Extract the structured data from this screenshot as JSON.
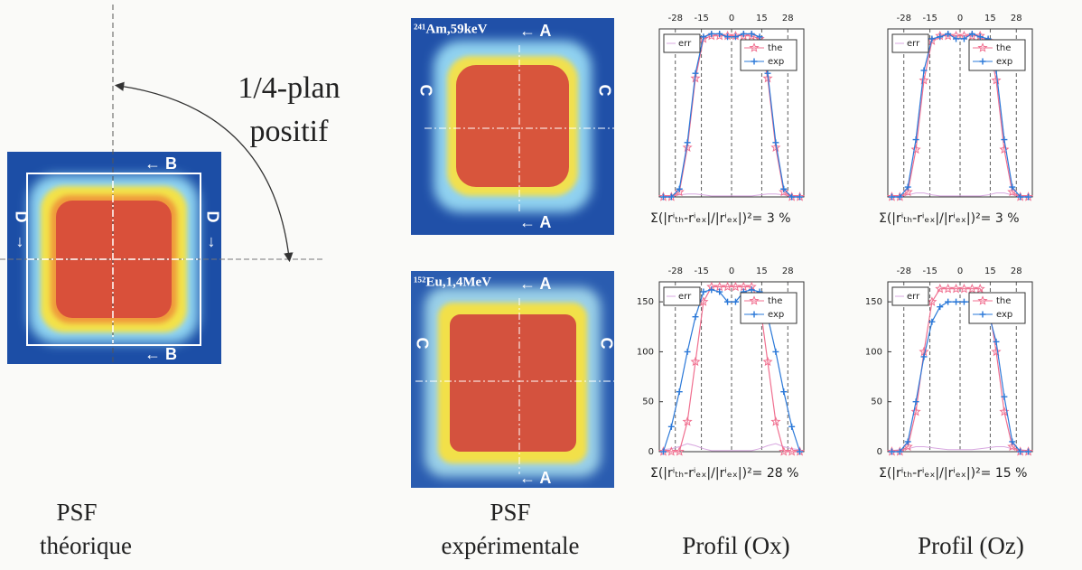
{
  "figure": {
    "theory_image": {
      "b_top": "← B",
      "b_bottom": "← B",
      "d_left": "D",
      "d_right": "D"
    },
    "arrow_text": [
      "1/4-plan",
      "positif"
    ],
    "experimental_images": [
      {
        "label": "²⁴¹Am,59keV",
        "a_top": "← A",
        "a_bottom": "← A",
        "c_left": "C",
        "c_right": "C"
      },
      {
        "label": "¹⁵²Eu,1,4MeV",
        "a_top": "← A",
        "a_bottom": "← A",
        "c_left": "C",
        "c_right": "C"
      }
    ],
    "captions": {
      "theory": [
        "PSF",
        "théorique"
      ],
      "experimental": [
        "PSF",
        "expérimentale"
      ],
      "profile_ox": "Profil (Ox)",
      "profile_oz": "Profil (Oz)"
    }
  },
  "chart_data": [
    {
      "type": "line",
      "annotation": "Σ(|rⁱₜₕ-rⁱₑₓ|/|rⁱₑₓ|)²= 3 %",
      "x": [
        -34,
        -30,
        -26,
        -22,
        -18,
        -14,
        -10,
        -6,
        -2,
        2,
        6,
        10,
        14,
        18,
        22,
        26,
        30,
        34
      ],
      "xlim": [
        -36,
        36
      ],
      "xticks": [
        -28,
        -15,
        0,
        15,
        28
      ],
      "ylim": [
        0,
        170
      ],
      "grid": true,
      "series": [
        {
          "name": "err",
          "color": "#d8a8e0",
          "values": [
            1,
            1,
            2,
            3,
            3,
            2,
            1,
            1,
            1,
            1,
            1,
            1,
            2,
            3,
            3,
            2,
            1,
            1
          ]
        },
        {
          "name": "the",
          "color": "#f07090",
          "values": [
            0,
            0,
            5,
            50,
            120,
            160,
            163,
            163,
            163,
            163,
            163,
            163,
            160,
            120,
            50,
            5,
            0,
            0
          ]
        },
        {
          "name": "exp",
          "color": "#2a78d8",
          "values": [
            0,
            0,
            8,
            55,
            125,
            162,
            165,
            165,
            162,
            162,
            165,
            165,
            162,
            125,
            55,
            8,
            0,
            0
          ]
        }
      ]
    },
    {
      "type": "line",
      "annotation": "Σ(|rⁱₜₕ-rⁱₑₓ|/|rⁱₑₓ|)²= 3 %",
      "x": [
        -34,
        -30,
        -26,
        -22,
        -18,
        -14,
        -10,
        -6,
        -2,
        2,
        6,
        10,
        14,
        18,
        22,
        26,
        30,
        34
      ],
      "xlim": [
        -36,
        36
      ],
      "xticks": [
        -28,
        -15,
        0,
        15,
        28
      ],
      "ylim": [
        0,
        170
      ],
      "grid": true,
      "series": [
        {
          "name": "err",
          "color": "#d8a8e0",
          "values": [
            1,
            1,
            2,
            4,
            4,
            2,
            1,
            1,
            1,
            1,
            1,
            1,
            2,
            4,
            4,
            2,
            1,
            1
          ]
        },
        {
          "name": "the",
          "color": "#f07090",
          "values": [
            0,
            0,
            5,
            48,
            118,
            158,
            163,
            163,
            163,
            163,
            163,
            163,
            158,
            118,
            48,
            5,
            0,
            0
          ]
        },
        {
          "name": "exp",
          "color": "#2a78d8",
          "values": [
            0,
            0,
            10,
            58,
            128,
            160,
            162,
            165,
            160,
            160,
            165,
            162,
            160,
            128,
            58,
            10,
            0,
            0
          ]
        }
      ]
    },
    {
      "type": "line",
      "annotation": "Σ(|rⁱₜₕ-rⁱₑₓ|/|rⁱₑₓ|)²= 28 %",
      "x": [
        -34,
        -30,
        -26,
        -22,
        -18,
        -14,
        -10,
        -6,
        -2,
        2,
        6,
        10,
        14,
        18,
        22,
        26,
        30,
        34
      ],
      "xlim": [
        -36,
        36
      ],
      "xticks": [
        -28,
        -15,
        0,
        15,
        28
      ],
      "ylim": [
        0,
        170
      ],
      "yticks": [
        0,
        50,
        100,
        150
      ],
      "grid": true,
      "series": [
        {
          "name": "err",
          "color": "#d8a8e0",
          "values": [
            2,
            3,
            5,
            8,
            6,
            3,
            1,
            1,
            1,
            1,
            1,
            1,
            3,
            6,
            8,
            5,
            3,
            2
          ]
        },
        {
          "name": "the",
          "color": "#f07090",
          "values": [
            0,
            0,
            0,
            30,
            90,
            150,
            165,
            165,
            165,
            165,
            165,
            165,
            150,
            90,
            30,
            0,
            0,
            0
          ]
        },
        {
          "name": "exp",
          "color": "#2a78d8",
          "values": [
            0,
            25,
            60,
            100,
            135,
            160,
            162,
            160,
            150,
            150,
            160,
            162,
            160,
            135,
            100,
            60,
            25,
            0
          ]
        }
      ]
    },
    {
      "type": "line",
      "annotation": "Σ(|rⁱₜₕ-rⁱₑₓ|/|rⁱₑₓ|)²= 15 %",
      "x": [
        -34,
        -30,
        -26,
        -22,
        -18,
        -14,
        -10,
        -6,
        -2,
        2,
        6,
        10,
        14,
        18,
        22,
        26,
        30,
        34
      ],
      "xlim": [
        -36,
        36
      ],
      "xticks": [
        -28,
        -15,
        0,
        15,
        28
      ],
      "ylim": [
        0,
        170
      ],
      "yticks": [
        0,
        50,
        100,
        150
      ],
      "grid": true,
      "series": [
        {
          "name": "err",
          "color": "#d8a8e0",
          "values": [
            1,
            2,
            3,
            5,
            5,
            4,
            3,
            2,
            2,
            2,
            2,
            3,
            4,
            5,
            5,
            3,
            2,
            1
          ]
        },
        {
          "name": "the",
          "color": "#f07090",
          "values": [
            0,
            0,
            5,
            40,
            100,
            150,
            163,
            163,
            163,
            163,
            163,
            163,
            150,
            100,
            40,
            5,
            0,
            0
          ]
        },
        {
          "name": "exp",
          "color": "#2a78d8",
          "values": [
            0,
            0,
            10,
            50,
            95,
            130,
            145,
            150,
            150,
            150,
            150,
            148,
            140,
            110,
            55,
            10,
            0,
            0
          ]
        }
      ]
    }
  ]
}
